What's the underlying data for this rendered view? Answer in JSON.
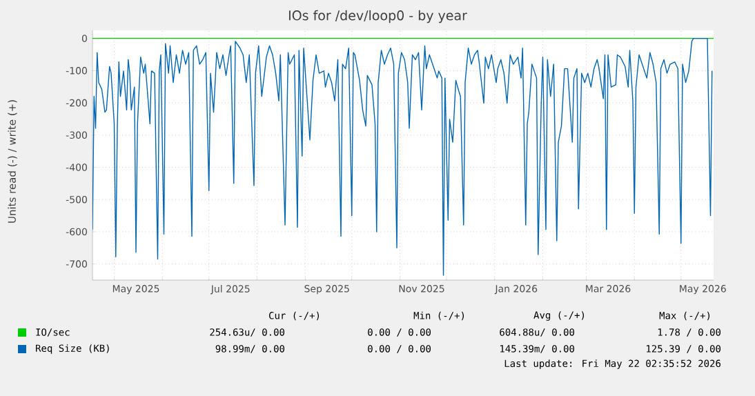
{
  "chart_data": {
    "type": "line",
    "title": "IOs for /dev/loop0 - by year",
    "ylabel": "Units read (-) / write (+)",
    "xlim": [
      "2025-04-17",
      "2026-05-22"
    ],
    "ylim": [
      -750,
      25
    ],
    "xticks": [
      {
        "value": "2025-05-01",
        "label": null
      },
      {
        "value": "2025-06-01",
        "label": null
      },
      {
        "value": "2025-07-01",
        "label": null
      },
      {
        "value": "2025-08-01",
        "label": null
      },
      {
        "value": "2025-09-01",
        "label": null
      },
      {
        "value": "2025-10-01",
        "label": null
      },
      {
        "value": "2025-11-01",
        "label": null
      },
      {
        "value": "2025-12-01",
        "label": null
      },
      {
        "value": "2026-01-01",
        "label": null
      },
      {
        "value": "2026-02-01",
        "label": null
      },
      {
        "value": "2026-03-01",
        "label": null
      },
      {
        "value": "2026-04-01",
        "label": null
      },
      {
        "value": "2026-05-01",
        "label": null
      },
      {
        "value": "2025-05-15",
        "label": "May 2025"
      },
      {
        "value": "2025-07-15",
        "label": "Jul 2025"
      },
      {
        "value": "2025-09-15",
        "label": "Sep 2025"
      },
      {
        "value": "2025-11-15",
        "label": "Nov 2025"
      },
      {
        "value": "2026-01-15",
        "label": "Jan 2026"
      },
      {
        "value": "2026-03-15",
        "label": "Mar 2026"
      },
      {
        "value": "2026-05-15",
        "label": "May 2026"
      }
    ],
    "yticks": [
      0,
      -100,
      -200,
      -300,
      -400,
      -500,
      -600,
      -700
    ],
    "grid": true,
    "legend": "bottom",
    "marker": "none",
    "line_style": "solid",
    "series": [
      {
        "name": "IO/sec",
        "color": "#00cc00",
        "x": [
          "2025-04-17",
          "2026-05-22"
        ],
        "values": [
          0,
          0
        ]
      },
      {
        "name": "Req Size (KB)",
        "color": "#0066b3",
        "x": [
          "2025-04-17",
          "2025-04-18",
          "2025-04-19",
          "2025-04-20",
          "2025-04-21",
          "2025-04-23",
          "2025-04-25",
          "2025-04-26",
          "2025-04-28",
          "2025-04-29",
          "2025-05-01",
          "2025-05-02",
          "2025-05-03",
          "2025-05-04",
          "2025-05-05",
          "2025-05-07",
          "2025-05-09",
          "2025-05-10",
          "2025-05-11",
          "2025-05-12",
          "2025-05-14",
          "2025-05-15",
          "2025-05-16",
          "2025-05-18",
          "2025-05-20",
          "2025-05-21",
          "2025-05-24",
          "2025-05-25",
          "2025-05-27",
          "2025-05-29",
          "2025-05-30",
          "2025-05-31",
          "2025-06-02",
          "2025-06-03",
          "2025-06-05",
          "2025-06-06",
          "2025-06-08",
          "2025-06-10",
          "2025-06-12",
          "2025-06-14",
          "2025-06-16",
          "2025-06-18",
          "2025-06-20",
          "2025-06-21",
          "2025-06-23",
          "2025-06-25",
          "2025-06-27",
          "2025-06-29",
          "2025-07-01",
          "2025-07-02",
          "2025-07-04",
          "2025-07-06",
          "2025-07-08",
          "2025-07-10",
          "2025-07-12",
          "2025-07-14",
          "2025-07-15",
          "2025-07-17",
          "2025-07-18",
          "2025-07-21",
          "2025-07-23",
          "2025-07-25",
          "2025-07-27",
          "2025-07-30",
          "2025-07-31",
          "2025-08-02",
          "2025-08-04",
          "2025-08-07",
          "2025-08-09",
          "2025-08-11",
          "2025-08-13",
          "2025-08-15",
          "2025-08-16",
          "2025-08-19",
          "2025-08-21",
          "2025-08-22",
          "2025-08-25",
          "2025-08-27",
          "2025-08-28",
          "2025-08-30",
          "2025-08-31",
          "2025-09-02",
          "2025-09-04",
          "2025-09-06",
          "2025-09-08",
          "2025-09-10",
          "2025-09-13",
          "2025-09-14",
          "2025-09-16",
          "2025-09-18",
          "2025-09-20",
          "2025-09-22",
          "2025-09-24",
          "2025-09-25",
          "2025-09-27",
          "2025-09-29",
          "2025-10-01",
          "2025-10-02",
          "2025-10-03",
          "2025-10-06",
          "2025-10-08",
          "2025-10-10",
          "2025-10-11",
          "2025-10-14",
          "2025-10-16",
          "2025-10-17",
          "2025-10-18",
          "2025-10-20",
          "2025-10-22",
          "2025-10-24",
          "2025-10-26",
          "2025-10-28",
          "2025-10-30",
          "2025-10-31",
          "2025-11-02",
          "2025-11-04",
          "2025-11-06",
          "2025-11-07",
          "2025-11-09",
          "2025-11-11",
          "2025-11-13",
          "2025-11-15",
          "2025-11-17",
          "2025-11-18",
          "2025-11-20",
          "2025-11-23",
          "2025-11-25",
          "2025-11-26",
          "2025-11-28",
          "2025-11-29",
          "2025-11-30",
          "2025-12-02",
          "2025-12-03",
          "2025-12-05",
          "2025-12-07",
          "2025-12-09",
          "2025-12-10",
          "2025-12-12",
          "2025-12-13",
          "2025-12-15",
          "2025-12-17",
          "2025-12-19",
          "2025-12-21",
          "2025-12-22",
          "2025-12-25",
          "2025-12-26",
          "2025-12-28",
          "2025-12-30",
          "2026-01-02",
          "2026-01-03",
          "2026-01-05",
          "2026-01-07",
          "2026-01-09",
          "2026-01-11",
          "2026-01-13",
          "2026-01-16",
          "2026-01-18",
          "2026-01-19",
          "2026-01-21",
          "2026-01-22",
          "2026-01-23",
          "2026-01-25",
          "2026-01-28",
          "2026-01-29",
          "2026-01-31",
          "2026-02-01",
          "2026-02-03",
          "2026-02-04",
          "2026-02-06",
          "2026-02-08",
          "2026-02-10",
          "2026-02-11",
          "2026-02-13",
          "2026-02-15",
          "2026-02-17",
          "2026-02-20",
          "2026-02-21",
          "2026-02-23",
          "2026-02-24",
          "2026-02-26",
          "2026-02-28",
          "2026-03-02",
          "2026-03-04",
          "2026-03-06",
          "2026-03-08",
          "2026-03-09",
          "2026-03-12",
          "2026-03-13",
          "2026-03-14",
          "2026-03-15",
          "2026-03-17",
          "2026-03-20",
          "2026-03-21",
          "2026-03-23",
          "2026-03-26",
          "2026-03-28",
          "2026-03-29",
          "2026-03-31",
          "2026-04-01",
          "2026-04-02",
          "2026-04-04",
          "2026-04-06",
          "2026-04-09",
          "2026-04-11",
          "2026-04-13",
          "2026-04-15",
          "2026-04-17",
          "2026-04-18",
          "2026-04-20",
          "2026-04-22",
          "2026-04-24",
          "2026-04-27",
          "2026-04-29",
          "2026-05-01",
          "2026-05-02",
          "2026-05-04",
          "2026-05-06",
          "2026-05-08",
          "2026-05-09",
          "2026-05-18",
          "2026-05-20",
          "2026-05-21"
        ],
        "values": [
          -593,
          -180,
          -279,
          -44,
          -137,
          -158,
          -229,
          -222,
          -87,
          -108,
          -265,
          -678,
          -272,
          -73,
          -180,
          -101,
          -222,
          -66,
          -108,
          -222,
          -151,
          -664,
          -265,
          -58,
          -108,
          -80,
          -265,
          -101,
          -108,
          -685,
          -101,
          -51,
          -607,
          -16,
          -108,
          -23,
          -137,
          -51,
          -108,
          -37,
          -80,
          -44,
          -614,
          -37,
          -23,
          -80,
          -66,
          -44,
          -472,
          -108,
          -229,
          -44,
          -94,
          -51,
          -115,
          -51,
          -23,
          -450,
          -9,
          -30,
          -51,
          -137,
          -51,
          -457,
          -108,
          -23,
          -180,
          -58,
          -23,
          -51,
          -108,
          -194,
          -51,
          -579,
          -44,
          -80,
          -51,
          -586,
          -37,
          -365,
          -30,
          -172,
          -315,
          -130,
          -51,
          -108,
          -101,
          -151,
          -108,
          -137,
          -194,
          -66,
          -614,
          -80,
          -94,
          -30,
          -550,
          -44,
          -51,
          -130,
          -222,
          -272,
          -115,
          -144,
          -265,
          -600,
          -137,
          -37,
          -80,
          -51,
          -30,
          -80,
          -650,
          -108,
          -44,
          -66,
          -137,
          -279,
          -51,
          -66,
          -44,
          -222,
          -23,
          -94,
          -51,
          -94,
          -123,
          -101,
          -123,
          -735,
          -123,
          -564,
          -251,
          -322,
          -130,
          -165,
          -180,
          -579,
          -137,
          -30,
          -80,
          -51,
          -37,
          -73,
          -201,
          -58,
          -94,
          -51,
          -137,
          -94,
          -66,
          -108,
          -201,
          -51,
          -80,
          -58,
          -123,
          -30,
          -579,
          -265,
          -229,
          -80,
          -123,
          -671,
          -201,
          -58,
          -593,
          -66,
          -180,
          -80,
          -628,
          -322,
          -272,
          -94,
          -94,
          -322,
          -123,
          -94,
          -529,
          -108,
          -137,
          -108,
          -151,
          -94,
          -66,
          -87,
          -187,
          -51,
          -593,
          -51,
          -151,
          -144,
          -51,
          -58,
          -87,
          -151,
          -37,
          -194,
          -543,
          -151,
          -51,
          -80,
          -123,
          -44,
          -80,
          -137,
          -607,
          -94,
          -66,
          -108,
          -80,
          -73,
          -94,
          -636,
          -80,
          -137,
          -101,
          -9,
          0,
          0,
          -550,
          -101
        ]
      }
    ],
    "annotations": [
      "Cur (-/+)",
      "Min (-/+)",
      "Avg (-/+)",
      "Max (-/+)",
      "254.63u/  0.00",
      "0.00 /  0.00",
      "604.88u/  0.00",
      "1.78 /  0.00",
      "98.99m/  0.00",
      "0.00 /  0.00",
      "145.39m/  0.00",
      "125.39 /  0.00",
      "Last update: Fri May 22 02:35:52 2026"
    ]
  }
}
